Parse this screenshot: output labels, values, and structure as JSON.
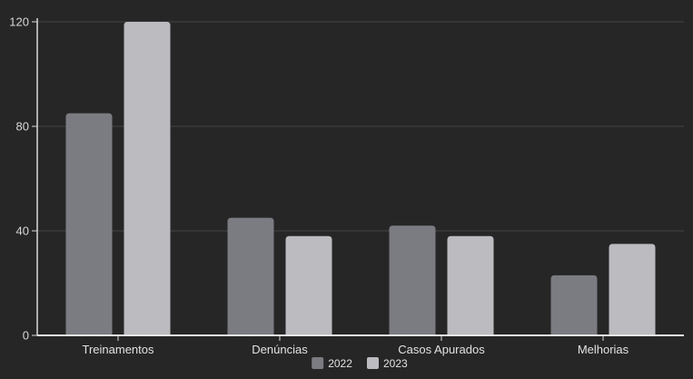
{
  "chart_data": {
    "type": "bar",
    "categories": [
      "Treinamentos",
      "Denúncias",
      "Casos Apurados",
      "Melhorias"
    ],
    "series": [
      {
        "name": "2022",
        "values": [
          85,
          45,
          42,
          23
        ],
        "color": "#7b7b82"
      },
      {
        "name": "2023",
        "values": [
          120,
          38,
          38,
          35
        ],
        "color": "#bcbbbf"
      }
    ],
    "yticks": [
      0,
      40,
      80,
      120
    ],
    "ylim": [
      0,
      120
    ],
    "grid": true,
    "legend_position": "bottom-center"
  }
}
